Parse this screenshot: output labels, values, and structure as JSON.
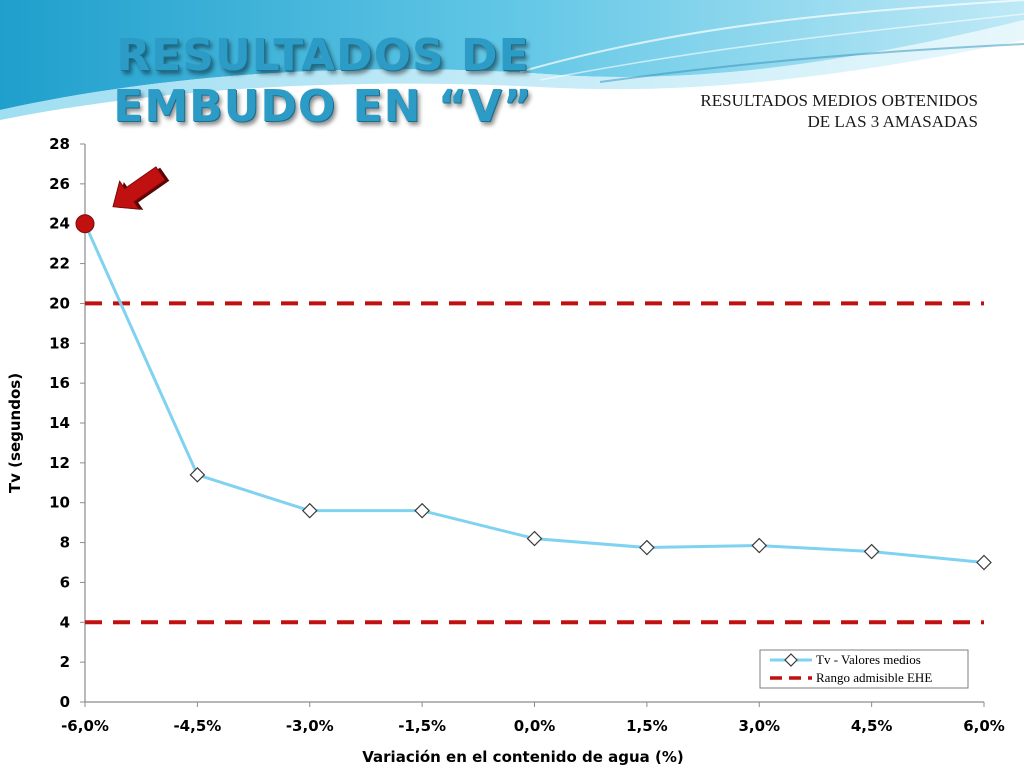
{
  "slide": {
    "title": "RESULTADOS DE EMBUDO EN “V”",
    "subtitle_lines": [
      "RESULTADOS MEDIOS OBTENIDOS",
      "DE LAS 3 AMASADAS"
    ]
  },
  "colors": {
    "title": "#2c9cc6",
    "series_line": "#7fd2f0",
    "marker_fill": "#ffffff",
    "marker_stroke": "#3a3a3a",
    "limit_line": "#c01010",
    "highlight": "#c01010",
    "banner_blue": "#3fb2d8"
  },
  "icons": {
    "pointer": "red-arrow-icon",
    "highlight_point": "red-dot-icon"
  },
  "chart_data": {
    "type": "line",
    "xlabel": "Variación en el contenido de agua (%)",
    "ylabel": "Tv (segundos)",
    "categories": [
      "-6,0%",
      "-4,5%",
      "-3,0%",
      "-1,5%",
      "0,0%",
      "1,5%",
      "3,0%",
      "4,5%",
      "6,0%"
    ],
    "x_values": [
      -6.0,
      -4.5,
      -3.0,
      -1.5,
      0.0,
      1.5,
      3.0,
      4.5,
      6.0
    ],
    "ylim": [
      0,
      28
    ],
    "yticks": [
      "0",
      "2",
      "4",
      "6",
      "8",
      "10",
      "12",
      "14",
      "16",
      "18",
      "20",
      "22",
      "24",
      "26",
      "28"
    ],
    "grid": false,
    "legend_position": "bottom-right",
    "series": [
      {
        "name": "Tv - Valores medios",
        "style": "solid-line-diamond-markers",
        "x": [
          -6.0,
          -4.5,
          -3.0,
          -1.5,
          0.0,
          1.5,
          3.0,
          4.5,
          6.0
        ],
        "values": [
          24.0,
          11.4,
          9.6,
          9.6,
          8.2,
          7.75,
          7.85,
          7.55,
          7.0
        ]
      },
      {
        "name": "Rango admisible EHE",
        "style": "dashed-line",
        "lines": [
          {
            "x": [
              -6.0,
              6.0
            ],
            "values": [
              20,
              20
            ]
          },
          {
            "x": [
              -6.0,
              6.0
            ],
            "values": [
              4,
              4
            ]
          }
        ]
      }
    ],
    "highlighted_point": {
      "x": -6.0,
      "value": 24.0
    }
  }
}
